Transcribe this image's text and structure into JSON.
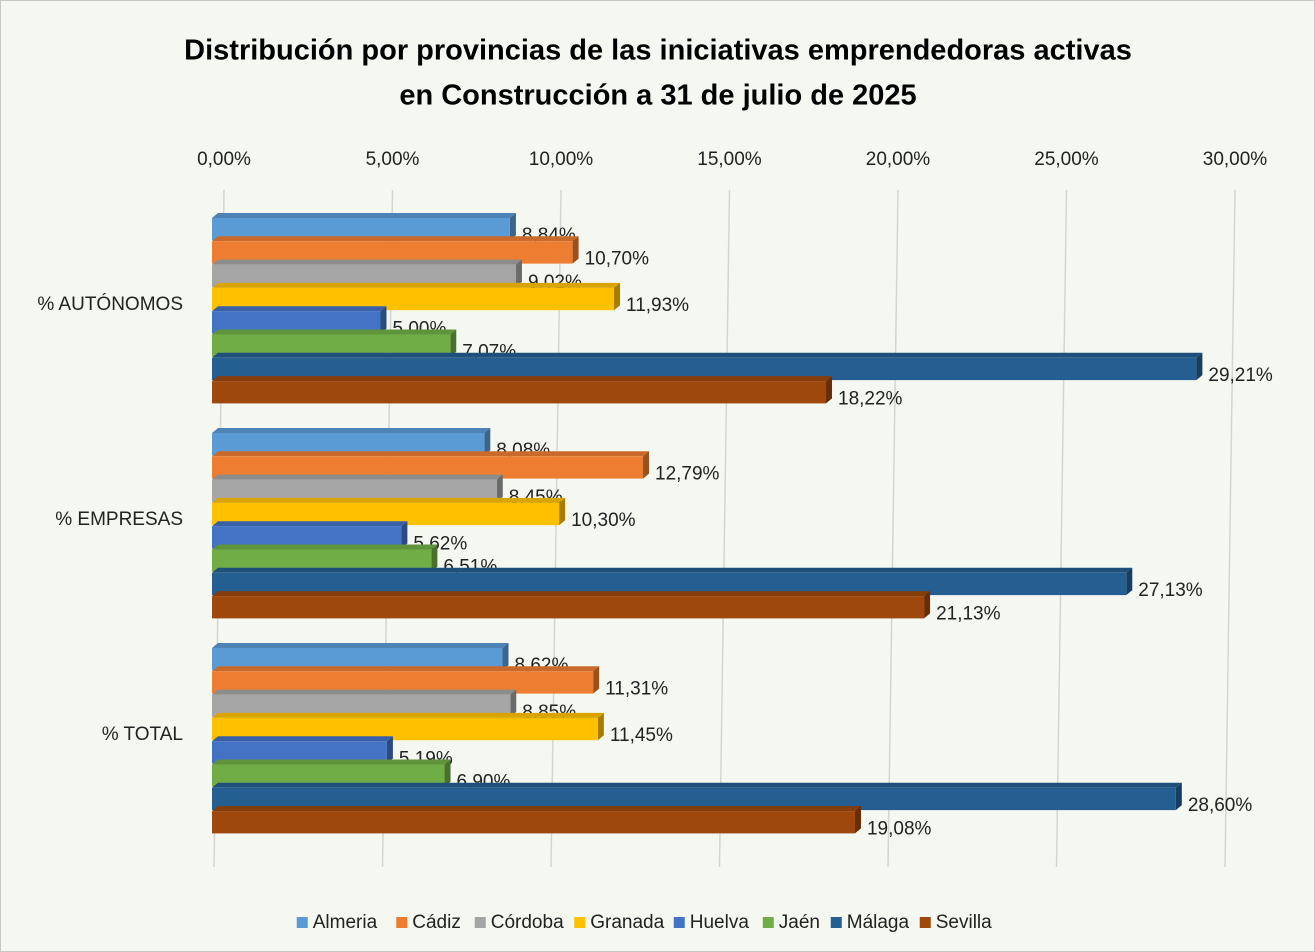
{
  "chart_data": {
    "type": "bar",
    "title": [
      "Distribución por provincias de las iniciativas emprendedoras activas",
      "en Construcción a 31 de julio de 2025"
    ],
    "categories": [
      "% AUTÓNOMOS",
      "% EMPRESAS",
      "% TOTAL"
    ],
    "series": [
      {
        "name": "Almeria",
        "color": "#5b9bd5",
        "values": [
          8.84,
          8.08,
          8.62
        ],
        "value_labels": [
          "8,84%",
          "8,08%",
          "8,62%"
        ]
      },
      {
        "name": "Cádiz",
        "color": "#ed7d31",
        "values": [
          10.7,
          12.79,
          11.31
        ],
        "value_labels": [
          "10,70%",
          "12,79%",
          "11,31%"
        ]
      },
      {
        "name": "Córdoba",
        "color": "#a5a5a5",
        "values": [
          9.02,
          8.45,
          8.85
        ],
        "value_labels": [
          "9,02%",
          "8,45%",
          "8,85%"
        ]
      },
      {
        "name": "Granada",
        "color": "#ffc000",
        "values": [
          11.93,
          10.3,
          11.45
        ],
        "value_labels": [
          "11,93%",
          "10,30%",
          "11,45%"
        ]
      },
      {
        "name": "Huelva",
        "color": "#4472c4",
        "values": [
          5.0,
          5.62,
          5.19
        ],
        "value_labels": [
          "5,00%",
          "5,62%",
          "5,19%"
        ]
      },
      {
        "name": "Jaén",
        "color": "#70ad47",
        "values": [
          7.07,
          6.51,
          6.9
        ],
        "value_labels": [
          "7,07%",
          "6,51%",
          "6,90%"
        ]
      },
      {
        "name": "Málaga",
        "color": "#255e91",
        "values": [
          29.21,
          27.13,
          28.6
        ],
        "value_labels": [
          "29,21%",
          "27,13%",
          "28,60%"
        ]
      },
      {
        "name": "Sevilla",
        "color": "#9e480e",
        "values": [
          18.22,
          21.13,
          19.08
        ],
        "value_labels": [
          "18,22%",
          "21,13%",
          "19,08%"
        ]
      }
    ],
    "xlim": [
      0,
      30
    ],
    "xticks": [
      {
        "value": 0,
        "label": "0,00%"
      },
      {
        "value": 5,
        "label": "5,00%"
      },
      {
        "value": 10,
        "label": "10,00%"
      },
      {
        "value": 15,
        "label": "15,00%"
      },
      {
        "value": 20,
        "label": "20,00%"
      },
      {
        "value": 25,
        "label": "25,00%"
      },
      {
        "value": 30,
        "label": "30,00%"
      }
    ],
    "grid": true,
    "legend": "bottom"
  }
}
